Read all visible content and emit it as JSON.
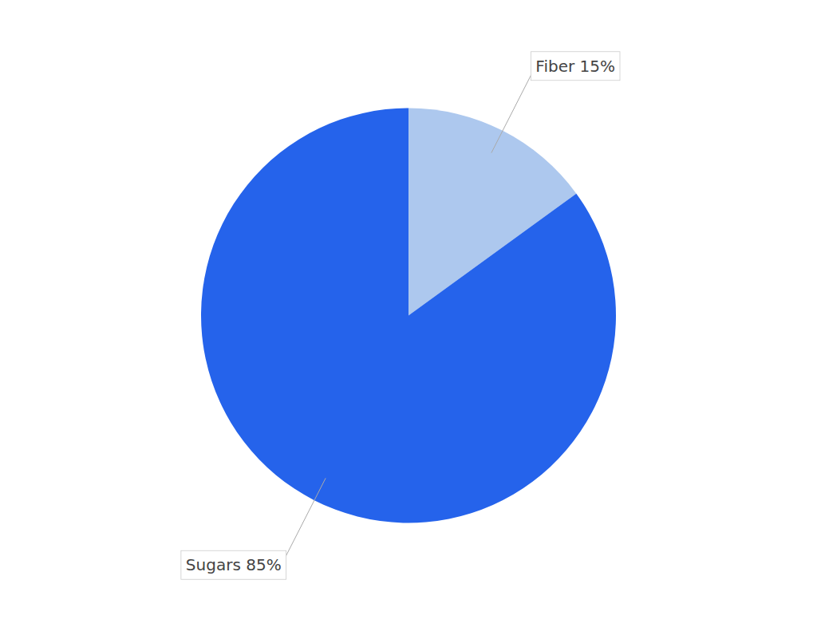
{
  "chart_data": {
    "type": "pie",
    "values": [
      15,
      85
    ],
    "value_labels": [
      "Fiber 15%",
      "Sugars 85%"
    ],
    "colors": [
      "#adc8ee",
      "#2563eb"
    ],
    "data_labels": true
  }
}
